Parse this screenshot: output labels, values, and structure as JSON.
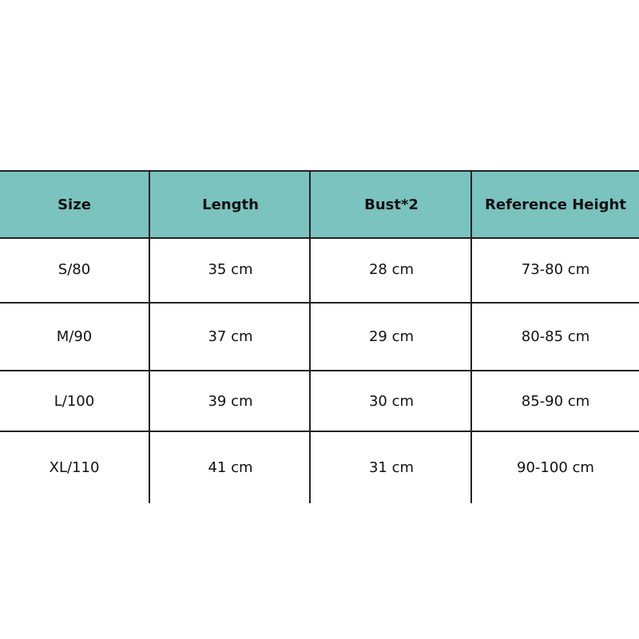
{
  "table": {
    "header_color": "#7ac3bf",
    "columns": [
      "Size",
      "Length",
      "Bust*2",
      "Reference Height"
    ],
    "rows": [
      [
        "S/80",
        "35 cm",
        "28 cm",
        "73-80 cm"
      ],
      [
        "M/90",
        "37 cm",
        "29 cm",
        "80-85 cm"
      ],
      [
        "L/100",
        "39 cm",
        "30 cm",
        "85-90 cm"
      ],
      [
        "XL/110",
        "41 cm",
        "31 cm",
        "90-100 cm"
      ]
    ]
  }
}
